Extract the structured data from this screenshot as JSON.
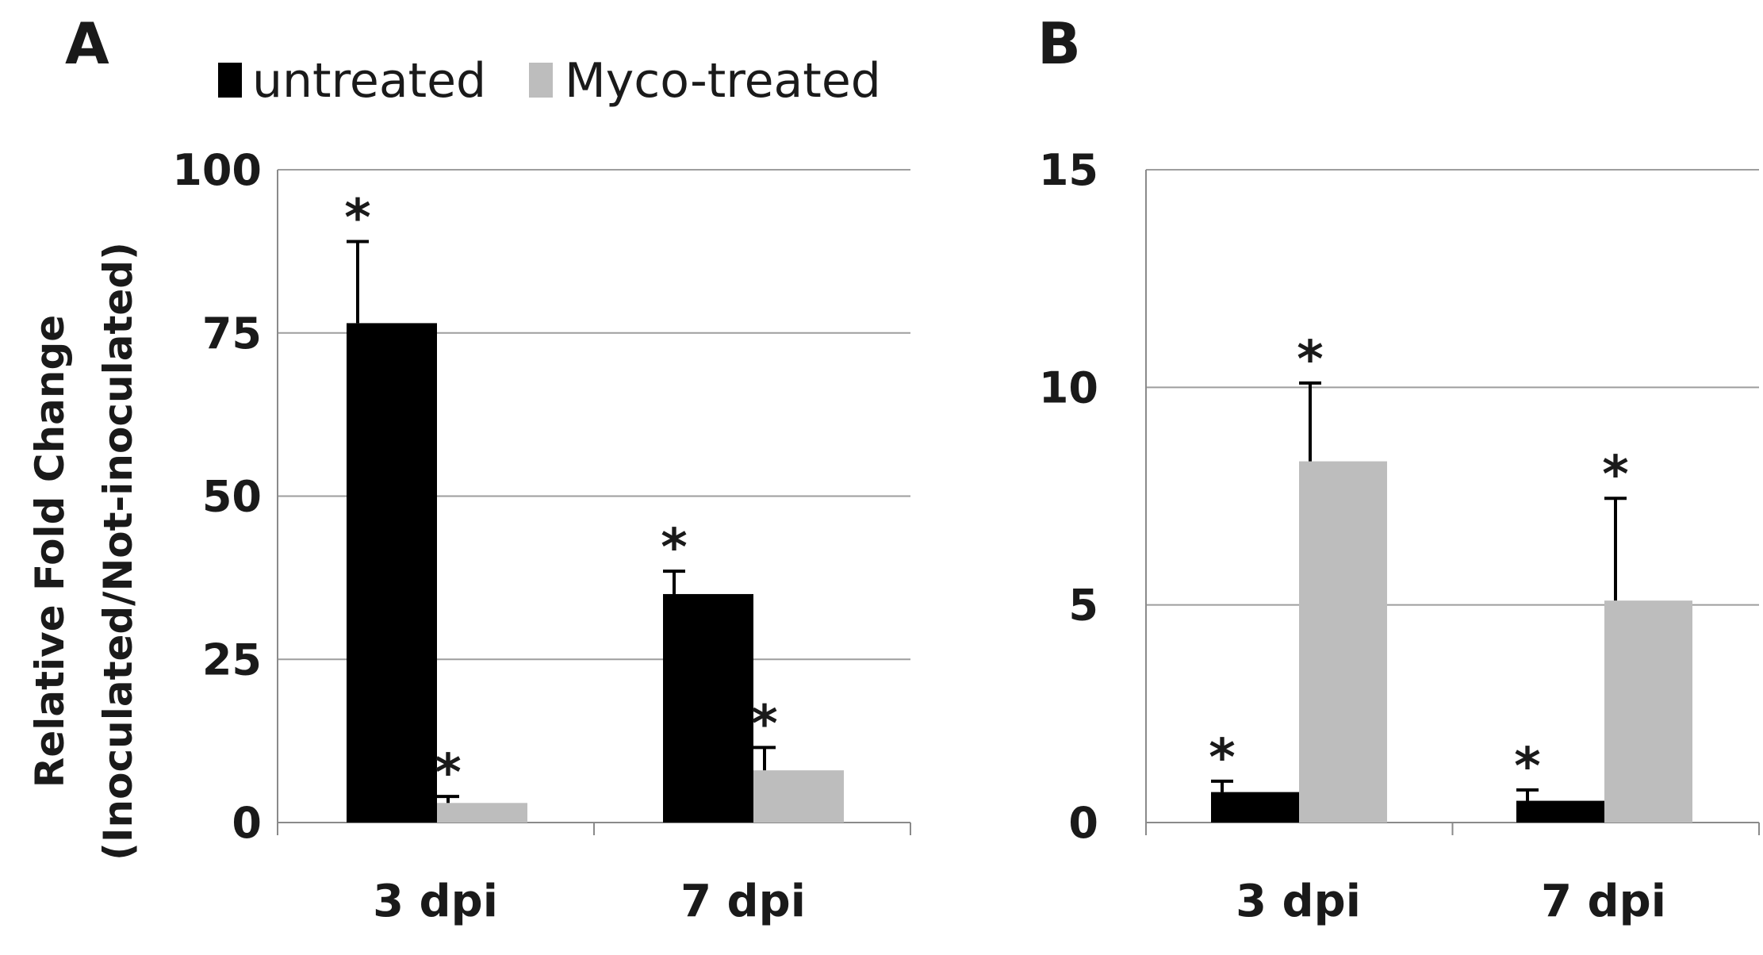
{
  "legend": {
    "entries": [
      {
        "label": "untreated",
        "color": "#000000"
      },
      {
        "label": "Myco-treated",
        "color": "#bdbdbd"
      }
    ]
  },
  "y_axis_label_line1": "Relative Fold Change",
  "y_axis_label_line2": "(Inoculated/Not-inoculated)",
  "chart_data": [
    {
      "panel": "A",
      "type": "bar",
      "categories": [
        "3 dpi",
        "7 dpi"
      ],
      "series": [
        {
          "name": "untreated",
          "values": [
            76.5,
            35
          ],
          "errors": [
            12.5,
            3.5
          ],
          "significant": [
            true,
            true
          ]
        },
        {
          "name": "Myco-treated",
          "values": [
            3,
            8
          ],
          "errors": [
            1,
            3.5
          ],
          "significant": [
            true,
            true
          ]
        }
      ],
      "ylim": [
        0,
        100
      ],
      "yticks": [
        0,
        25,
        50,
        75,
        100
      ],
      "significance_marker": "*",
      "grid": true
    },
    {
      "panel": "B",
      "type": "bar",
      "categories": [
        "3 dpi",
        "7 dpi"
      ],
      "series": [
        {
          "name": "untreated",
          "values": [
            0.7,
            0.5
          ],
          "errors": [
            0.25,
            0.25
          ],
          "significant": [
            true,
            true
          ]
        },
        {
          "name": "Myco-treated",
          "values": [
            8.3,
            5.1
          ],
          "errors": [
            1.8,
            2.35
          ],
          "significant": [
            true,
            true
          ]
        }
      ],
      "ylim": [
        0,
        15
      ],
      "yticks": [
        0,
        5,
        10,
        15
      ],
      "significance_marker": "*",
      "grid": true
    }
  ]
}
